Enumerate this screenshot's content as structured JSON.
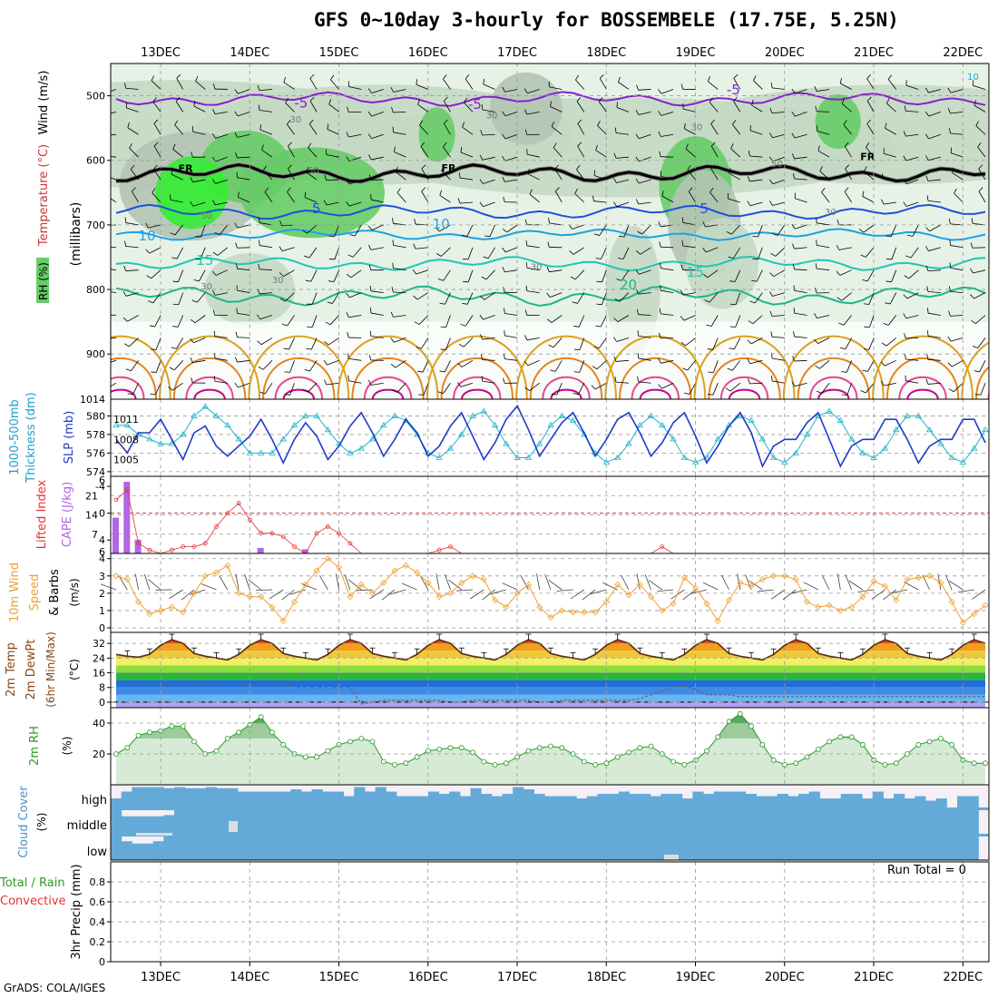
{
  "title": "GFS 0~10day 3-hourly for BOSSEMBELE (17.75E, 5.25N)",
  "credit": "GrADS: COLA/IGES",
  "run_total": "Run Total = 0",
  "colors": {
    "rh_light": "#e6f2e6",
    "rh_mid": "#c4d9c4",
    "rh_grey": "#b4c4b4",
    "rh_green": "#66cc66",
    "rh_bright": "#33ee33",
    "temp_m5": "#8a1ecc",
    "temp_0": "#000000",
    "temp_5": "#1e50dc",
    "temp_10": "#1ea0e6",
    "temp_15": "#1ec8b4",
    "temp_20": "#1eb48c",
    "temp_25": "#dca01e",
    "temp_30": "#e6821e",
    "temp_35": "#e64696",
    "temp_40": "#c8008c",
    "slp": "#1e3cc8",
    "thickness": "#1eb4c8",
    "cape": "#b464e6",
    "lifted_index": "#e63232",
    "wind10m": "#f0a030",
    "barb": "#000000",
    "rh2m": "#2a9a2a",
    "cloud": "#64aad8",
    "cloud_bg": "#f4f0f6"
  },
  "dates": [
    "13DEC",
    "14DEC",
    "15DEC",
    "16DEC",
    "17DEC",
    "18DEC",
    "19DEC",
    "20DEC",
    "21DEC",
    "22DEC"
  ],
  "chart_data": [
    {
      "type": "heatmap",
      "name": "upper_air",
      "ylabel": "(millibars)",
      "side_labels": [
        "Wind (m/s)",
        "Temperature (°C)",
        "RH (%)"
      ],
      "y_ticks": [
        500,
        600,
        700,
        800,
        900
      ],
      "ylim": [
        450,
        970
      ],
      "rh_contours": [
        30,
        50,
        70,
        90
      ],
      "contour_labels": [
        {
          "text": "-5",
          "x": 2.05,
          "p": 518
        },
        {
          "text": "-5",
          "x": 4.0,
          "p": 520
        },
        {
          "text": "-5",
          "x": 6.9,
          "p": 498
        },
        {
          "text": "FR",
          "x": 0.75,
          "p": 618
        },
        {
          "text": "FR",
          "x": 3.7,
          "p": 617
        },
        {
          "text": "FR",
          "x": 8.4,
          "p": 600
        },
        {
          "text": "5",
          "x": 2.25,
          "p": 682
        },
        {
          "text": "5",
          "x": 6.6,
          "p": 682
        },
        {
          "text": "10",
          "x": 0.3,
          "p": 724
        },
        {
          "text": "10",
          "x": 3.6,
          "p": 706
        },
        {
          "text": "15",
          "x": 0.95,
          "p": 762
        },
        {
          "text": "15",
          "x": 6.45,
          "p": 780
        },
        {
          "text": "20",
          "x": 5.7,
          "p": 800
        },
        {
          "text": "30",
          "x": 2.0,
          "p": 541
        },
        {
          "text": "30",
          "x": 4.2,
          "p": 535
        },
        {
          "text": "30",
          "x": 6.5,
          "p": 553
        },
        {
          "text": "30",
          "x": 4.7,
          "p": 770
        },
        {
          "text": "30",
          "x": 1.0,
          "p": 800
        },
        {
          "text": "30",
          "x": 8.0,
          "p": 685
        },
        {
          "text": "30",
          "x": 1.8,
          "p": 790
        },
        {
          "text": "50",
          "x": 2.2,
          "p": 620
        },
        {
          "text": "50",
          "x": 1.0,
          "p": 690
        },
        {
          "text": "50",
          "x": 7.4,
          "p": 610
        },
        {
          "text": "10",
          "x": 9.6,
          "p": 475
        }
      ]
    },
    {
      "type": "line",
      "name": "thickness_slp",
      "ylabel_left": "Thickness (dm)",
      "ylabel_left2": "1000-500mb",
      "ylabel_right": "SLP (mb)",
      "left_ticks": [
        580,
        578,
        576,
        574
      ],
      "left_range": [
        573.5,
        581.8
      ],
      "right_ticks": [
        1014,
        1011,
        1008,
        1005
      ],
      "right_range": [
        1002.5,
        1014
      ],
      "series": [
        {
          "name": "SLP",
          "values": [
            1008.0,
            1006.0,
            1009.0,
            1009.0,
            1011.0,
            1008.0,
            1005.0,
            1009.0,
            1010.0,
            1007.0,
            1005.5,
            1007.0,
            1008.5,
            1011.0,
            1008.0,
            1004.5,
            1008.0,
            1010.5,
            1008.5,
            1005.0,
            1007.0,
            1010.0,
            1012.0,
            1009.0,
            1005.5,
            1008.0,
            1011.0,
            1009.0,
            1005.5,
            1007.0,
            1010.0,
            1012.0,
            1008.5,
            1005.0,
            1007.5,
            1011.0,
            1013.0,
            1009.5,
            1005.5,
            1008.0,
            1010.5,
            1012.0,
            1009.0,
            1005.5,
            1008.0,
            1011.0,
            1012.0,
            1009.0,
            1005.5,
            1007.5,
            1010.5,
            1012.0,
            1008.5,
            1004.5,
            1007.0,
            1010.0,
            1012.0,
            1009.0,
            1004.0,
            1007.0,
            1008.0,
            1008.0,
            1010.5,
            1012.0,
            1008.0,
            1004.0,
            1007.0,
            1008.0,
            1008.0,
            1011.0,
            1011.0,
            1008.0,
            1004.5,
            1007.0,
            1008.0,
            1008.0,
            1011.0,
            1011.0,
            1007.5
          ]
        },
        {
          "name": "Thickness",
          "values": [
            579.0,
            579.0,
            578.0,
            577.5,
            577.0,
            577.0,
            578.0,
            580.0,
            581.0,
            580.0,
            579.0,
            577.5,
            576.0,
            576.0,
            576.0,
            577.5,
            579.0,
            580.0,
            580.0,
            578.5,
            577.0,
            576.0,
            576.5,
            577.5,
            579.0,
            580.0,
            579.5,
            578.0,
            576.0,
            575.5,
            576.5,
            578.0,
            580.0,
            580.5,
            579.0,
            577.0,
            575.5,
            575.5,
            577.0,
            579.0,
            580.0,
            579.5,
            578.0,
            576.0,
            575.0,
            575.5,
            577.0,
            579.0,
            580.0,
            579.0,
            577.5,
            575.5,
            575.0,
            575.5,
            577.5,
            579.0,
            580.0,
            579.5,
            577.5,
            575.5,
            575.0,
            576.0,
            578.0,
            580.0,
            580.5,
            579.5,
            577.5,
            576.0,
            575.5,
            576.5,
            578.5,
            580.0,
            580.0,
            578.5,
            577.0,
            575.5,
            575.0,
            576.5,
            578.5
          ]
        }
      ]
    },
    {
      "type": "bar",
      "name": "cape_li",
      "ylabel_left": "Lifted Index",
      "ylabel_right": "CAPE (J/kg)",
      "li_ticks": [
        -4,
        0,
        4
      ],
      "cape_ticks": [
        7,
        14,
        21
      ],
      "cape_values": [
        {
          "i": 0,
          "v": 13
        },
        {
          "i": 1,
          "v": 26
        },
        {
          "i": 2,
          "v": 5
        },
        {
          "i": 13,
          "v": 2
        },
        {
          "i": 17,
          "v": 1.5
        }
      ],
      "li_values": [
        -2.0,
        -3.5,
        4.5,
        5.5,
        6.0,
        5.5,
        5.0,
        5.0,
        4.5,
        2.0,
        0.0,
        -1.5,
        1.0,
        3.0,
        3.0,
        3.5,
        5.0,
        6.0,
        3.0,
        2.0,
        3.0,
        4.5,
        6.0,
        6.0,
        6.0,
        6.0,
        6.0,
        6.0,
        6.0,
        5.5,
        5.0,
        6.0,
        6.0,
        6.0,
        6.0,
        6.0,
        6.0,
        6.0,
        6.0,
        6.0,
        6.0,
        6.0,
        6.0,
        6.0,
        6.0,
        6.0,
        6.0,
        6.0,
        6.0,
        5.0,
        6.0,
        6.0,
        6.0,
        6.0,
        6.0,
        6.0,
        6.0,
        6.0,
        6.0,
        6.0,
        6.0,
        6.0,
        6.0,
        6.0,
        6.0,
        6.0,
        6.0,
        6.0,
        6.0,
        6.0,
        6.0,
        6.0,
        6.0,
        6.0,
        6.0,
        6.0,
        6.0,
        6.0,
        6.0
      ]
    },
    {
      "type": "line",
      "name": "wind10m",
      "ylabel": "10m Wind Speed & Barbs (m/s)",
      "y_ticks": [
        0,
        1,
        2,
        3,
        4
      ],
      "ylim": [
        0,
        4.3
      ],
      "values": [
        3.0,
        2.8,
        1.5,
        0.8,
        1.0,
        1.2,
        0.9,
        2.0,
        3.0,
        3.2,
        3.6,
        2.0,
        1.8,
        1.8,
        1.2,
        0.4,
        1.5,
        2.5,
        3.3,
        4.0,
        3.5,
        1.8,
        2.5,
        2.0,
        2.6,
        3.3,
        3.6,
        3.2,
        2.6,
        1.8,
        2.0,
        2.6,
        3.0,
        2.8,
        1.6,
        1.2,
        2.0,
        2.5,
        1.2,
        0.6,
        1.0,
        0.9,
        0.9,
        0.9,
        1.5,
        2.5,
        1.9,
        2.5,
        1.8,
        1.0,
        1.4,
        2.9,
        2.3,
        1.4,
        0.4,
        1.6,
        2.6,
        2.4,
        2.8,
        3.0,
        3.0,
        2.8,
        1.5,
        1.2,
        1.3,
        1.0,
        1.2,
        1.8,
        2.7,
        2.4,
        1.6,
        2.8,
        2.9,
        3.0,
        2.6,
        1.5,
        0.3,
        0.8,
        1.3
      ]
    },
    {
      "type": "area",
      "name": "temp2m",
      "ylabel": "2m Temp 2m DewPt (6hr Min/Max) (°C)",
      "y_ticks": [
        0,
        8,
        16,
        24,
        32
      ],
      "ylim": [
        -3,
        38
      ],
      "temp": [
        26.0,
        25.0,
        24.5,
        26.0,
        31.0,
        34.0,
        32.0,
        26.5,
        25.0,
        24.0,
        23.0,
        26.0,
        31.0,
        34.0,
        32.0,
        26.5,
        25.0,
        24.0,
        23.0,
        26.0,
        31.0,
        34.0,
        32.0,
        26.5,
        25.0,
        24.0,
        23.0,
        26.0,
        31.0,
        34.0,
        32.0,
        26.5,
        25.0,
        24.0,
        23.0,
        26.0,
        31.0,
        34.0,
        32.0,
        26.5,
        25.0,
        24.0,
        23.0,
        26.0,
        31.0,
        34.0,
        32.0,
        26.5,
        25.0,
        24.0,
        23.0,
        26.0,
        31.0,
        34.0,
        32.0,
        26.5,
        25.0,
        24.0,
        23.0,
        26.0,
        31.0,
        34.0,
        32.0,
        26.5,
        25.0,
        24.0,
        23.0,
        26.0,
        31.0,
        34.0,
        32.0,
        26.5,
        25.0,
        24.0,
        23.0,
        26.0,
        31.0,
        34.0,
        32.0
      ],
      "dewpt": [
        10.0,
        10.0,
        10.0,
        10.0,
        10.0,
        9.0,
        9.0,
        9.0,
        10.0,
        10.0,
        10.0,
        10.0,
        9.0,
        9.0,
        9.0,
        9.0,
        8.0,
        8.0,
        8.0,
        8.0,
        8.0,
        8.0,
        -1.0,
        0.0,
        1.0,
        1.0,
        1.0,
        1.0,
        1.0,
        1.0,
        0.0,
        0.0,
        1.0,
        1.0,
        1.0,
        1.0,
        1.0,
        1.0,
        0.0,
        0.0,
        1.0,
        1.0,
        1.0,
        1.0,
        1.0,
        1.0,
        1.0,
        2.0,
        4.0,
        6.0,
        8.0,
        9.0,
        7.0,
        4.0,
        4.0,
        4.0,
        3.0,
        3.0,
        3.0,
        3.0,
        3.0,
        3.0,
        3.0,
        3.0,
        3.0,
        3.0,
        3.0,
        3.0,
        3.0,
        3.0,
        3.0,
        3.0,
        3.0,
        3.0,
        3.0,
        3.0,
        3.0,
        3.0,
        3.0
      ]
    },
    {
      "type": "area",
      "name": "rh2m",
      "ylabel": "2m RH (%)",
      "y_ticks": [
        20,
        40
      ],
      "ylim": [
        0,
        50
      ],
      "values": [
        20.0,
        24.0,
        32.0,
        34.0,
        35.0,
        38.0,
        38.0,
        28.0,
        20.0,
        22.0,
        30.0,
        34.0,
        39.0,
        44.0,
        34.0,
        26.0,
        20.0,
        18.0,
        18.0,
        22.0,
        26.0,
        28.0,
        30.0,
        28.0,
        15.0,
        13.0,
        14.0,
        18.0,
        22.0,
        23.0,
        24.0,
        24.0,
        21.0,
        15.0,
        13.0,
        14.0,
        18.0,
        22.0,
        24.0,
        25.0,
        24.0,
        20.0,
        15.0,
        13.0,
        14.0,
        18.0,
        21.0,
        24.0,
        25.0,
        20.0,
        15.0,
        13.0,
        16.0,
        22.0,
        31.0,
        41.0,
        46.0,
        38.0,
        26.0,
        16.0,
        13.0,
        14.0,
        18.0,
        23.0,
        28.0,
        31.0,
        31.0,
        26.0,
        16.0,
        13.0,
        14.0,
        20.0,
        26.0,
        28.0,
        30.0,
        26.0,
        16.0,
        14.0,
        14.0
      ]
    },
    {
      "type": "heatmap",
      "name": "cloud_cover",
      "ylabel": "Cloud Cover (%)",
      "levels": [
        "high",
        "middle",
        "low"
      ],
      "high": [
        40,
        70,
        90,
        90,
        90,
        85,
        90,
        85,
        85,
        90,
        85,
        85,
        70,
        70,
        70,
        70,
        70,
        80,
        70,
        80,
        70,
        70,
        50,
        90,
        70,
        90,
        70,
        50,
        50,
        50,
        70,
        60,
        70,
        50,
        85,
        60,
        50,
        60,
        90,
        80,
        60,
        50,
        50,
        50,
        40,
        50,
        60,
        60,
        70,
        60,
        60,
        50,
        60,
        60,
        40,
        70,
        60,
        70,
        70,
        70,
        60,
        50,
        50,
        60,
        50,
        60,
        70,
        40,
        40,
        60,
        60,
        40,
        70,
        40,
        60,
        40,
        50,
        30,
        40,
        0,
        50,
        50,
        0
      ],
      "middle": [
        100,
        75,
        75,
        75,
        75,
        80,
        100,
        100,
        100,
        100,
        100,
        100,
        100,
        100,
        100,
        100,
        100,
        100,
        100,
        100,
        100,
        100,
        100,
        100,
        100,
        100,
        100,
        100,
        100,
        100,
        100,
        100,
        100,
        100,
        100,
        100,
        100,
        100,
        100,
        100,
        100,
        100,
        100,
        100,
        100,
        100,
        100,
        100,
        100,
        100,
        100,
        100,
        100,
        100,
        100,
        100,
        100,
        100,
        100,
        100,
        100,
        100,
        100,
        100,
        100,
        100,
        100,
        100,
        100,
        100,
        100,
        100,
        100,
        100,
        100,
        100,
        100,
        100,
        100,
        100,
        100,
        100
      ],
      "low": [
        100,
        80,
        70,
        70,
        80,
        100,
        100,
        100,
        100,
        100,
        100,
        100,
        100,
        100,
        100,
        100,
        100,
        100,
        100,
        100,
        100,
        100,
        100,
        100,
        100,
        100,
        100,
        100,
        100,
        100,
        100,
        100,
        100,
        100,
        100,
        100,
        100,
        100,
        100,
        100,
        100,
        100,
        100,
        100,
        100,
        100,
        100,
        100,
        100,
        100,
        100,
        100,
        100,
        100,
        100,
        100,
        100,
        100,
        100,
        100,
        100,
        100,
        100,
        100,
        100,
        100,
        100,
        100,
        100,
        100,
        100,
        100,
        100,
        100,
        100,
        100,
        100,
        100,
        100,
        100,
        100,
        100
      ]
    },
    {
      "type": "bar",
      "name": "precip",
      "ylabel_left": "3hr Precip (mm)",
      "side_labels": [
        "Total / Rain",
        "Convective"
      ],
      "y_ticks": [
        0,
        0.2,
        0.4,
        0.6,
        0.8
      ],
      "ylim": [
        0,
        1
      ],
      "values": []
    }
  ]
}
